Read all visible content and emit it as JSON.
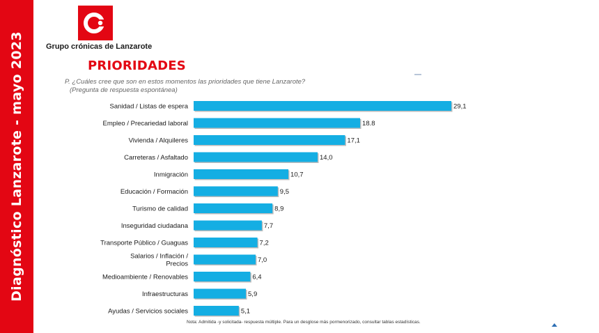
{
  "sidebar": {
    "text": "Diagnóstico Lanzarote - mayo 2023"
  },
  "header": {
    "brand": "Grupo crónicas de Lanzarote",
    "title": "PRIORIDADES",
    "question": "P. ¿Cuáles cree que son en estos momentos las prioridades que tiene Lanzarote?",
    "question_note": "(Pregunta de respuesta espontánea)"
  },
  "note": "Nota: Admitida -y solicitada- respuesta múltiple. Para un desglose más pormenorizado, consultar tablas estadísticas.",
  "colors": {
    "brand_red": "#e30613",
    "bar": "#14aee3"
  },
  "chart_data": {
    "type": "bar",
    "orientation": "horizontal",
    "title": "PRIORIDADES",
    "xlabel": "",
    "ylabel": "",
    "xlim": [
      0,
      30
    ],
    "grid": false,
    "categories": [
      "Sanidad / Listas de espera",
      "Empleo / Precariedad laboral",
      "Vivienda / Alquileres",
      "Carreteras / Asfaltado",
      "Inmigración",
      "Educación / Formación",
      "Turismo de calidad",
      "Inseguridad ciudadana",
      "Transporte Público / Guaguas",
      "Salarios / Inflación / Precios",
      "Medioambiente / Renovables",
      "Infraestructuras",
      "Ayudas / Servicios sociales"
    ],
    "values": [
      29.1,
      18.8,
      17.1,
      14.0,
      10.7,
      9.5,
      8.9,
      7.7,
      7.2,
      7.0,
      6.4,
      5.9,
      5.1
    ],
    "value_labels": [
      "29,1",
      "18.8",
      "17,1",
      "14,0",
      "10,7",
      "9,5",
      "8,9",
      "7,7",
      "7,2",
      "7,0",
      "6,4",
      "5,9",
      "5,1"
    ]
  }
}
